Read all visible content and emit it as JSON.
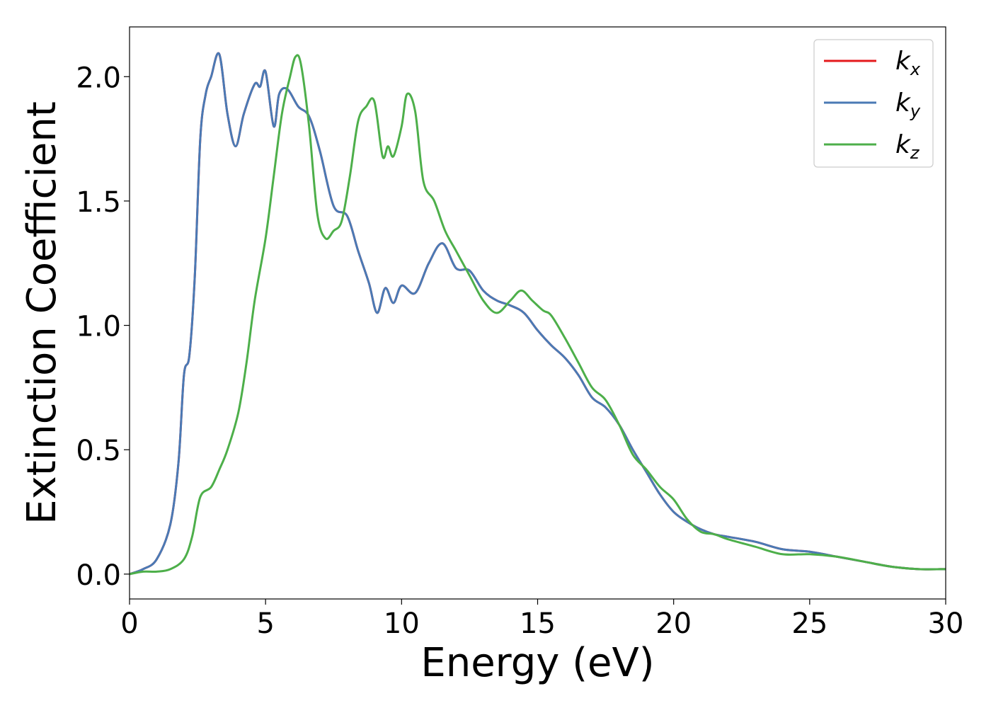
{
  "chart_data": {
    "type": "line",
    "xlabel": "Energy (eV)",
    "ylabel": "Extinction Coefficient",
    "xlim": [
      0,
      30
    ],
    "ylim": [
      -0.1,
      2.2
    ],
    "xticks": [
      0,
      5,
      10,
      15,
      20,
      25,
      30
    ],
    "xtick_labels": [
      "0",
      "5",
      "10",
      "15",
      "20",
      "25",
      "30"
    ],
    "yticks": [
      0.0,
      0.5,
      1.0,
      1.5,
      2.0
    ],
    "ytick_labels": [
      "0.0",
      "0.5",
      "1.0",
      "1.5",
      "2.0"
    ],
    "grid": false,
    "legend_position": "top-right",
    "series": [
      {
        "name": "k",
        "subscript": "x",
        "color": "#e41a1c",
        "x": [
          0,
          0.5,
          1.0,
          1.5,
          1.8,
          2.0,
          2.2,
          2.4,
          2.6,
          2.8,
          3.0,
          3.3,
          3.6,
          3.9,
          4.2,
          4.6,
          4.8,
          5.0,
          5.3,
          5.5,
          5.8,
          6.2,
          6.6,
          7.0,
          7.5,
          8.0,
          8.4,
          8.8,
          9.1,
          9.4,
          9.7,
          10.0,
          10.5,
          11.0,
          11.5,
          12.0,
          12.5,
          13.0,
          13.5,
          14.0,
          14.5,
          15.0,
          15.5,
          16.0,
          16.5,
          17.0,
          17.5,
          18.0,
          18.5,
          19.0,
          19.5,
          20.0,
          20.5,
          21.0,
          21.5,
          22.0,
          23.0,
          24.0,
          25.0,
          26.0,
          27.0,
          28.0,
          29.0,
          30.0
        ],
        "values": [
          0.0,
          0.02,
          0.06,
          0.2,
          0.45,
          0.8,
          0.88,
          1.2,
          1.75,
          1.93,
          2.0,
          2.09,
          1.85,
          1.72,
          1.85,
          1.97,
          1.96,
          2.02,
          1.8,
          1.93,
          1.95,
          1.88,
          1.84,
          1.7,
          1.48,
          1.44,
          1.3,
          1.17,
          1.05,
          1.15,
          1.09,
          1.16,
          1.13,
          1.25,
          1.33,
          1.23,
          1.22,
          1.14,
          1.1,
          1.08,
          1.05,
          0.98,
          0.92,
          0.87,
          0.8,
          0.71,
          0.67,
          0.6,
          0.5,
          0.41,
          0.32,
          0.25,
          0.21,
          0.18,
          0.16,
          0.15,
          0.13,
          0.1,
          0.09,
          0.07,
          0.05,
          0.03,
          0.02,
          0.02
        ]
      },
      {
        "name": "k",
        "subscript": "y",
        "color": "#4a7ab5",
        "x": [
          0,
          0.5,
          1.0,
          1.5,
          1.8,
          2.0,
          2.2,
          2.4,
          2.6,
          2.8,
          3.0,
          3.3,
          3.6,
          3.9,
          4.2,
          4.6,
          4.8,
          5.0,
          5.3,
          5.5,
          5.8,
          6.2,
          6.6,
          7.0,
          7.5,
          8.0,
          8.4,
          8.8,
          9.1,
          9.4,
          9.7,
          10.0,
          10.5,
          11.0,
          11.5,
          12.0,
          12.5,
          13.0,
          13.5,
          14.0,
          14.5,
          15.0,
          15.5,
          16.0,
          16.5,
          17.0,
          17.5,
          18.0,
          18.5,
          19.0,
          19.5,
          20.0,
          20.5,
          21.0,
          21.5,
          22.0,
          23.0,
          24.0,
          25.0,
          26.0,
          27.0,
          28.0,
          29.0,
          30.0
        ],
        "values": [
          0.0,
          0.02,
          0.06,
          0.2,
          0.45,
          0.8,
          0.88,
          1.2,
          1.75,
          1.93,
          2.0,
          2.09,
          1.85,
          1.72,
          1.85,
          1.97,
          1.96,
          2.02,
          1.8,
          1.93,
          1.95,
          1.88,
          1.84,
          1.7,
          1.48,
          1.44,
          1.3,
          1.17,
          1.05,
          1.15,
          1.09,
          1.16,
          1.13,
          1.25,
          1.33,
          1.23,
          1.22,
          1.14,
          1.1,
          1.08,
          1.05,
          0.98,
          0.92,
          0.87,
          0.8,
          0.71,
          0.67,
          0.6,
          0.5,
          0.41,
          0.32,
          0.25,
          0.21,
          0.18,
          0.16,
          0.15,
          0.13,
          0.1,
          0.09,
          0.07,
          0.05,
          0.03,
          0.02,
          0.02
        ]
      },
      {
        "name": "k",
        "subscript": "z",
        "color": "#4daf4a",
        "x": [
          0,
          0.5,
          1.0,
          1.5,
          2.0,
          2.3,
          2.6,
          3.0,
          3.3,
          3.6,
          4.0,
          4.3,
          4.6,
          5.0,
          5.3,
          5.6,
          5.9,
          6.1,
          6.3,
          6.6,
          6.9,
          7.2,
          7.5,
          7.8,
          8.1,
          8.4,
          8.7,
          9.0,
          9.3,
          9.5,
          9.7,
          10.0,
          10.2,
          10.5,
          10.8,
          11.2,
          11.6,
          12.0,
          12.5,
          13.0,
          13.5,
          14.0,
          14.4,
          14.8,
          15.2,
          15.5,
          16.0,
          16.5,
          17.0,
          17.5,
          18.0,
          18.5,
          19.0,
          19.5,
          20.0,
          20.5,
          21.0,
          21.5,
          22.0,
          23.0,
          24.0,
          25.0,
          26.0,
          27.0,
          28.0,
          29.0,
          30.0
        ],
        "values": [
          0.0,
          0.01,
          0.01,
          0.02,
          0.06,
          0.15,
          0.31,
          0.35,
          0.42,
          0.5,
          0.65,
          0.85,
          1.1,
          1.35,
          1.6,
          1.85,
          2.0,
          2.08,
          2.05,
          1.8,
          1.45,
          1.35,
          1.38,
          1.42,
          1.6,
          1.82,
          1.88,
          1.9,
          1.68,
          1.72,
          1.68,
          1.8,
          1.93,
          1.86,
          1.58,
          1.5,
          1.38,
          1.3,
          1.2,
          1.1,
          1.05,
          1.1,
          1.14,
          1.1,
          1.06,
          1.04,
          0.95,
          0.85,
          0.75,
          0.7,
          0.6,
          0.48,
          0.42,
          0.35,
          0.3,
          0.22,
          0.17,
          0.16,
          0.14,
          0.11,
          0.08,
          0.08,
          0.07,
          0.05,
          0.03,
          0.02,
          0.02
        ]
      }
    ]
  }
}
